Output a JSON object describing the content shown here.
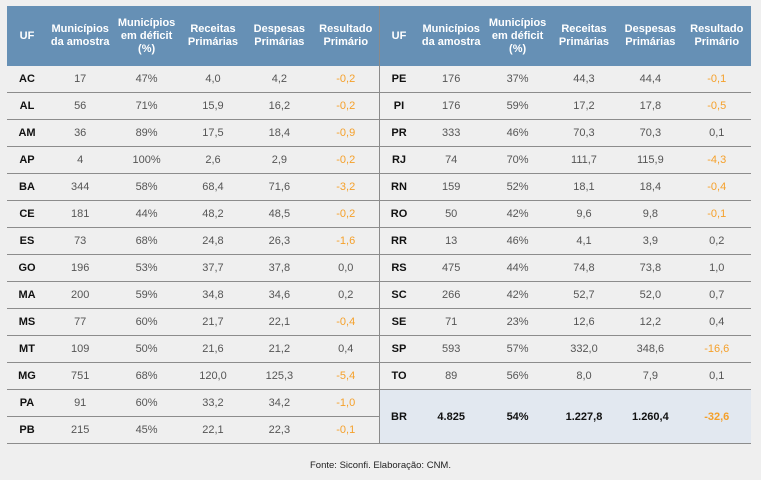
{
  "headers": [
    "UF",
    "Municípios da amostra",
    "Municípios em déficit (%)",
    "Receitas Primárias",
    "Despesas Primárias",
    "Resultado Primário"
  ],
  "accent_header": "#6690b5",
  "negative_color": "#f5a02a",
  "left_rows": [
    [
      "AC",
      "17",
      "47%",
      "4,0",
      "4,2",
      "-0,2"
    ],
    [
      "AL",
      "56",
      "71%",
      "15,9",
      "16,2",
      "-0,2"
    ],
    [
      "AM",
      "36",
      "89%",
      "17,5",
      "18,4",
      "-0,9"
    ],
    [
      "AP",
      "4",
      "100%",
      "2,6",
      "2,9",
      "-0,2"
    ],
    [
      "BA",
      "344",
      "58%",
      "68,4",
      "71,6",
      "-3,2"
    ],
    [
      "CE",
      "181",
      "44%",
      "48,2",
      "48,5",
      "-0,2"
    ],
    [
      "ES",
      "73",
      "68%",
      "24,8",
      "26,3",
      "-1,6"
    ],
    [
      "GO",
      "196",
      "53%",
      "37,7",
      "37,8",
      "0,0"
    ],
    [
      "MA",
      "200",
      "59%",
      "34,8",
      "34,6",
      "0,2"
    ],
    [
      "MS",
      "77",
      "60%",
      "21,7",
      "22,1",
      "-0,4"
    ],
    [
      "MT",
      "109",
      "50%",
      "21,6",
      "21,2",
      "0,4"
    ],
    [
      "MG",
      "751",
      "68%",
      "120,0",
      "125,3",
      "-5,4"
    ],
    [
      "PA",
      "91",
      "60%",
      "33,2",
      "34,2",
      "-1,0"
    ],
    [
      "PB",
      "215",
      "45%",
      "22,1",
      "22,3",
      "-0,1"
    ]
  ],
  "right_rows": [
    [
      "PE",
      "176",
      "37%",
      "44,3",
      "44,4",
      "-0,1"
    ],
    [
      "PI",
      "176",
      "59%",
      "17,2",
      "17,8",
      "-0,5"
    ],
    [
      "PR",
      "333",
      "46%",
      "70,3",
      "70,3",
      "0,1"
    ],
    [
      "RJ",
      "74",
      "70%",
      "111,7",
      "115,9",
      "-4,3"
    ],
    [
      "RN",
      "159",
      "52%",
      "18,1",
      "18,4",
      "-0,4"
    ],
    [
      "RO",
      "50",
      "42%",
      "9,6",
      "9,8",
      "-0,1"
    ],
    [
      "RR",
      "13",
      "46%",
      "4,1",
      "3,9",
      "0,2"
    ],
    [
      "RS",
      "475",
      "44%",
      "74,8",
      "73,8",
      "1,0"
    ],
    [
      "SC",
      "266",
      "42%",
      "52,7",
      "52,0",
      "0,7"
    ],
    [
      "SE",
      "71",
      "23%",
      "12,6",
      "12,2",
      "0,4"
    ],
    [
      "SP",
      "593",
      "57%",
      "332,0",
      "348,6",
      "-16,6"
    ],
    [
      "TO",
      "89",
      "56%",
      "8,0",
      "7,9",
      "0,1"
    ]
  ],
  "total_row": [
    "BR",
    "4.825",
    "54%",
    "1.227,8",
    "1.260,4",
    "-32,6"
  ],
  "source": "Fonte: Siconfi. Elaboração: CNM."
}
